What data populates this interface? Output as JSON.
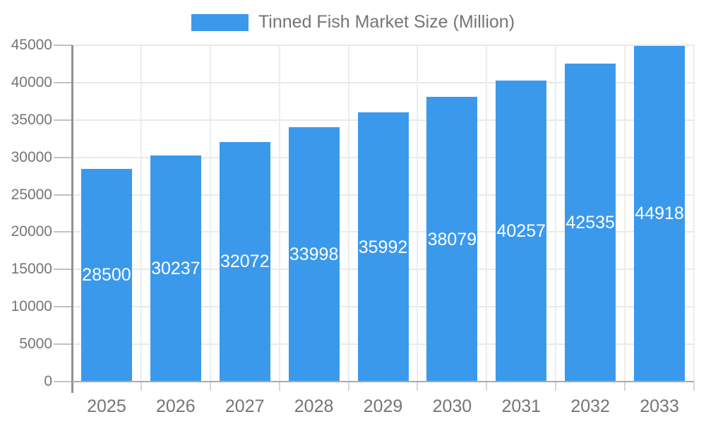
{
  "legend": {
    "label": "Tinned Fish Market Size (Million)"
  },
  "colors": {
    "bar": "#3b99ec",
    "axis_text": "#757575",
    "value_text": "#ffffff"
  },
  "chart_data": {
    "type": "bar",
    "title": "Tinned Fish Market Size (Million)",
    "categories": [
      "2025",
      "2026",
      "2027",
      "2028",
      "2029",
      "2030",
      "2031",
      "2032",
      "2033"
    ],
    "values": [
      28500,
      30237,
      32072,
      33998,
      35992,
      38079,
      40257,
      42535,
      44918
    ],
    "series": [
      {
        "name": "Tinned Fish Market Size (Million)",
        "values": [
          28500,
          30237,
          32072,
          33998,
          35992,
          38079,
          40257,
          42535,
          44918
        ]
      }
    ],
    "yticks": [
      0,
      5000,
      10000,
      15000,
      20000,
      25000,
      30000,
      35000,
      40000,
      45000
    ],
    "ylim": [
      0,
      45000
    ],
    "xlabel": "",
    "ylabel": "",
    "grid": true,
    "legend_position": "top",
    "value_labels": "inside-center"
  }
}
